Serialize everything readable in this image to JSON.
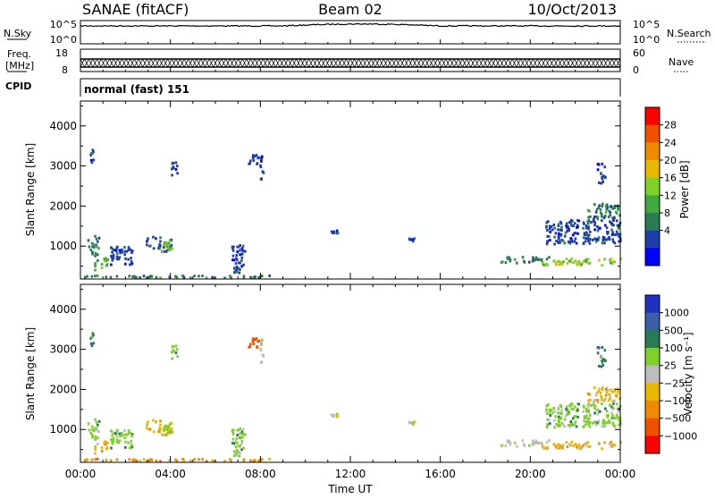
{
  "header": {
    "station": "SANAE (fitACF)",
    "beam": "Beam 02",
    "date": "10/Oct/2013"
  },
  "noise_panel": {
    "left_label": "N.Sky",
    "right_label": "N.Search",
    "left_ticks": [
      "10^5",
      "10^0"
    ],
    "right_ticks": [
      "10^5",
      "10^0"
    ]
  },
  "freq_panel": {
    "left_label_1": "Freq.",
    "left_label_2": "[MHz]",
    "left_ticks": [
      "18",
      "8"
    ],
    "right_label": "Nave",
    "right_ticks": [
      "60",
      "0"
    ]
  },
  "cpid": {
    "label": "CPID",
    "value": "normal (fast) 151"
  },
  "colors": {
    "power": [
      "#0000ff",
      "#1f3fa8",
      "#2a7a55",
      "#3fa83f",
      "#7fd12a",
      "#e8b800",
      "#f08a00",
      "#f05000",
      "#ff0000"
    ],
    "velocity": [
      "#2030c0",
      "#3a5fa8",
      "#2a7a55",
      "#7fd12a",
      "#bdbdbd",
      "#e8b800",
      "#f08a00",
      "#f05000",
      "#ff0000"
    ]
  },
  "chart_data": [
    {
      "type": "heatmap",
      "name": "power",
      "ylabel": "Slant Range [km]",
      "ylim": [
        180,
        4620
      ],
      "y_ticks": [
        1000,
        2000,
        3000,
        4000
      ],
      "xlim": [
        0,
        24
      ],
      "x_ticks": [
        0,
        4,
        8,
        12,
        16,
        20,
        24
      ],
      "colorbar_label": "Power [dB]",
      "colorbar_ticks": [
        "4",
        "8",
        "12",
        "16",
        "20",
        "24",
        "28"
      ],
      "colorbar_range": [
        0,
        30
      ],
      "clusters": [
        {
          "t": 2.9,
          "r": 1050,
          "w": 1.1,
          "h": 380,
          "level": 1
        },
        {
          "t": 3.6,
          "r": 1000,
          "w": 0.5,
          "h": 250,
          "level": 4
        },
        {
          "t": 0.3,
          "r": 1000,
          "w": 0.5,
          "h": 500,
          "level": 2
        },
        {
          "t": 0.6,
          "r": 550,
          "w": 0.6,
          "h": 300,
          "level": 3
        },
        {
          "t": 1.3,
          "r": 750,
          "w": 1.0,
          "h": 500,
          "level": 1
        },
        {
          "t": 0.0,
          "r": 230,
          "w": 8.5,
          "h": 70,
          "level": 2
        },
        {
          "t": 0.4,
          "r": 3250,
          "w": 0.15,
          "h": 350,
          "level": 1
        },
        {
          "t": 7.4,
          "r": 3150,
          "w": 0.5,
          "h": 300,
          "level": 1
        },
        {
          "t": 7.9,
          "r": 2950,
          "w": 0.2,
          "h": 600,
          "level": 1
        },
        {
          "t": 6.7,
          "r": 700,
          "w": 0.6,
          "h": 800,
          "level": 1
        },
        {
          "t": 4.0,
          "r": 2900,
          "w": 0.3,
          "h": 400,
          "level": 1
        },
        {
          "t": 18.6,
          "r": 650,
          "w": 2.2,
          "h": 150,
          "level": 2
        },
        {
          "t": 20.5,
          "r": 600,
          "w": 3.5,
          "h": 180,
          "level": 4
        },
        {
          "t": 20.6,
          "r": 1350,
          "w": 3.4,
          "h": 600,
          "level": 1
        },
        {
          "t": 22.4,
          "r": 1850,
          "w": 1.6,
          "h": 400,
          "level": 2
        },
        {
          "t": 22.9,
          "r": 2800,
          "w": 0.4,
          "h": 500,
          "level": 1
        },
        {
          "t": 14.4,
          "r": 1150,
          "w": 0.4,
          "h": 80,
          "level": 1
        },
        {
          "t": 11.1,
          "r": 1350,
          "w": 0.3,
          "h": 70,
          "level": 1
        }
      ]
    },
    {
      "type": "heatmap",
      "name": "velocity",
      "ylabel": "Slant Range [km]",
      "ylim": [
        180,
        4620
      ],
      "y_ticks": [
        1000,
        2000,
        3000,
        4000
      ],
      "xlim": [
        0,
        24
      ],
      "x_ticks": [
        0,
        4,
        8,
        12,
        16,
        20,
        24
      ],
      "x_tick_labels": [
        "00:00",
        "04:00",
        "08:00",
        "12:00",
        "16:00",
        "20:00",
        "00:00"
      ],
      "xlabel": "Time UT",
      "colorbar_label": "Velocity [m s⁻¹]",
      "colorbar_ticks": [
        "1000",
        "500",
        "100",
        "25",
        "−25",
        "−100",
        "−500",
        "−1000"
      ],
      "clusters": [
        {
          "t": 2.9,
          "r": 1050,
          "w": 1.1,
          "h": 380,
          "level": 5
        },
        {
          "t": 3.6,
          "r": 1000,
          "w": 0.5,
          "h": 250,
          "level": 3
        },
        {
          "t": 0.3,
          "r": 1000,
          "w": 0.5,
          "h": 500,
          "level": 3
        },
        {
          "t": 0.6,
          "r": 550,
          "w": 0.6,
          "h": 300,
          "level": 5
        },
        {
          "t": 1.3,
          "r": 750,
          "w": 1.0,
          "h": 500,
          "level": 3
        },
        {
          "t": 0.0,
          "r": 230,
          "w": 8.5,
          "h": 70,
          "level": 6
        },
        {
          "t": 0.4,
          "r": 3250,
          "w": 0.15,
          "h": 350,
          "level": 2
        },
        {
          "t": 7.4,
          "r": 3150,
          "w": 0.5,
          "h": 300,
          "level": 7
        },
        {
          "t": 7.9,
          "r": 2950,
          "w": 0.2,
          "h": 600,
          "level": 4
        },
        {
          "t": 6.7,
          "r": 700,
          "w": 0.6,
          "h": 800,
          "level": 3
        },
        {
          "t": 4.0,
          "r": 2900,
          "w": 0.3,
          "h": 400,
          "level": 3
        },
        {
          "t": 18.6,
          "r": 650,
          "w": 2.2,
          "h": 150,
          "level": 4
        },
        {
          "t": 20.5,
          "r": 600,
          "w": 3.5,
          "h": 180,
          "level": 5
        },
        {
          "t": 20.6,
          "r": 1350,
          "w": 3.4,
          "h": 600,
          "level": 3
        },
        {
          "t": 22.4,
          "r": 1850,
          "w": 1.6,
          "h": 400,
          "level": 5
        },
        {
          "t": 22.9,
          "r": 2800,
          "w": 0.4,
          "h": 500,
          "level": 2
        },
        {
          "t": 14.4,
          "r": 1150,
          "w": 0.4,
          "h": 80,
          "level": 4
        },
        {
          "t": 11.1,
          "r": 1350,
          "w": 0.3,
          "h": 70,
          "level": 4
        }
      ]
    }
  ]
}
